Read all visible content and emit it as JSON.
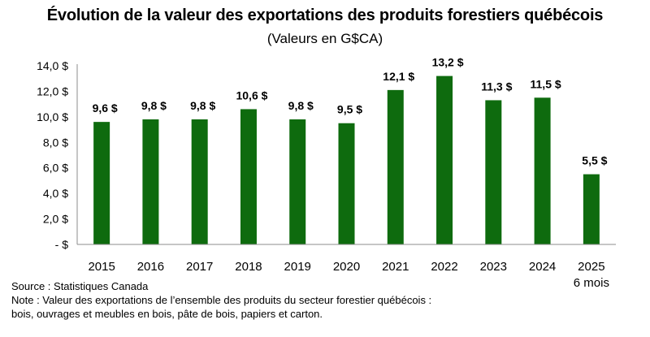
{
  "chart_data": {
    "type": "bar",
    "title": "Évolution de la valeur des exportations des produits forestiers québécois",
    "subtitle": "(Valeurs en G$CA)",
    "categories": [
      "2015",
      "2016",
      "2017",
      "2018",
      "2019",
      "2020",
      "2021",
      "2022",
      "2023",
      "2024",
      "2025"
    ],
    "category_sublabels": [
      "",
      "",
      "",
      "",
      "",
      "",
      "",
      "",
      "",
      "",
      "6 mois"
    ],
    "values": [
      9.6,
      9.8,
      9.8,
      10.6,
      9.8,
      9.5,
      12.1,
      13.2,
      11.3,
      11.5,
      5.5
    ],
    "data_labels": [
      "9,6 $",
      "9,8 $",
      "9,8 $",
      "10,6 $",
      "9,8 $",
      "9,5 $",
      "12,1 $",
      "13,2 $",
      "11,3 $",
      "11,5 $",
      "5,5 $"
    ],
    "yticks": [
      0,
      2,
      4,
      6,
      8,
      10,
      12,
      14
    ],
    "ytick_labels": [
      "- $",
      "2,0 $",
      "4,0 $",
      "6,0 $",
      "8,0 $",
      "10,0 $",
      "12,0 $",
      "14,0 $"
    ],
    "ylim": [
      0,
      14
    ],
    "xlabel": "",
    "ylabel": "",
    "grid": false,
    "bar_color": "#0e6b0e"
  },
  "footnotes": {
    "source": "Source : Statistiques Canada",
    "note_line1": "Note : Valeur des exportations de l’ensemble des produits du secteur forestier québécois :",
    "note_line2": "bois, ouvrages et meubles en bois, pâte de bois, papiers et carton."
  }
}
